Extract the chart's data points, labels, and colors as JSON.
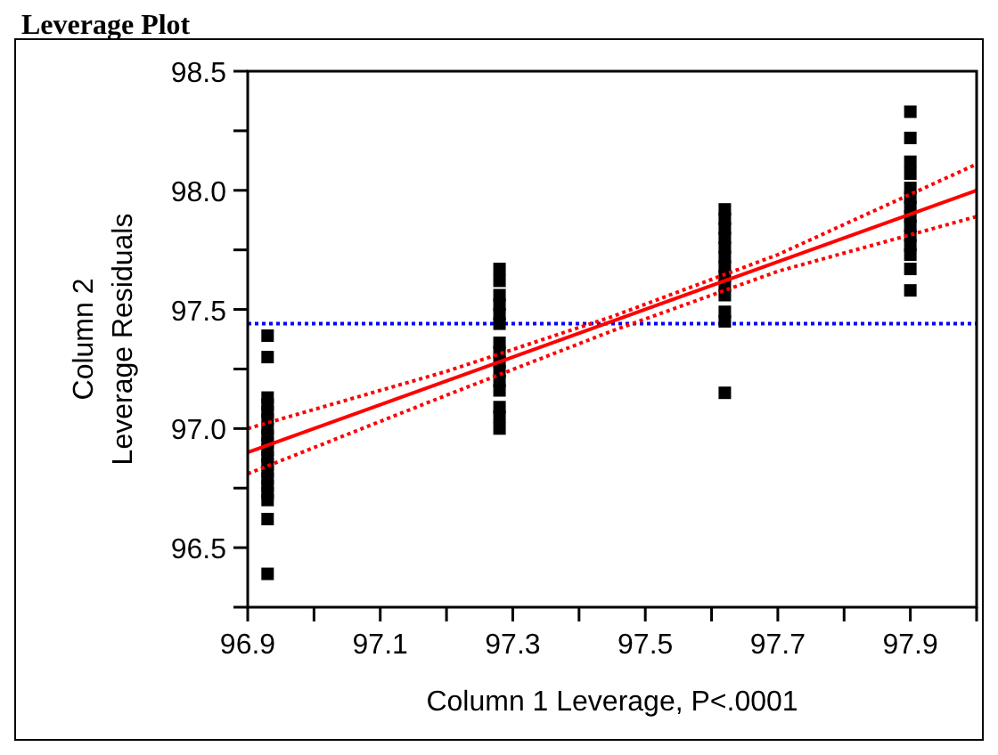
{
  "chart_data": {
    "type": "scatter",
    "title": "Leverage Plot",
    "xlabel": "Column 1 Leverage, P<.0001",
    "ylabel": "Column 2\nLeverage Residuals",
    "xlim": [
      96.9,
      98.0
    ],
    "ylim": [
      96.25,
      98.5
    ],
    "xticks": [
      96.9,
      {
        "value": 97.0,
        "label": null
      },
      97.1,
      {
        "value": 97.2,
        "label": null
      },
      97.3,
      {
        "value": 97.4,
        "label": null
      },
      97.5,
      {
        "value": 97.6,
        "label": null
      },
      97.7,
      {
        "value": 97.8,
        "label": null
      },
      97.9,
      {
        "value": 98.0,
        "label": null
      }
    ],
    "yticks": [
      {
        "value": 96.25,
        "label": null
      },
      96.5,
      {
        "value": 96.75,
        "label": null
      },
      {
        "value": 97.0,
        "label": "97.0"
      },
      {
        "value": 97.25,
        "label": null
      },
      97.5,
      {
        "value": 97.75,
        "label": null
      },
      {
        "value": 98.0,
        "label": "98.0"
      },
      {
        "value": 98.25,
        "label": null
      },
      98.5
    ],
    "grid": false,
    "ref_lines": [
      {
        "axis": "y",
        "value": 97.44,
        "color": "#0000ff",
        "line_style": "dotted"
      }
    ],
    "series": [
      {
        "color": "#000000",
        "marker": "square",
        "x": [
          96.93,
          96.93,
          96.93,
          96.93,
          96.93,
          96.93,
          96.93,
          96.93,
          96.93,
          96.93,
          96.93,
          96.93,
          96.93,
          96.93,
          96.93,
          96.93,
          96.93,
          96.93,
          96.93,
          97.28,
          97.28,
          97.28,
          97.28,
          97.28,
          97.28,
          97.28,
          97.28,
          97.28,
          97.28,
          97.28,
          97.28,
          97.28,
          97.28,
          97.28,
          97.62,
          97.62,
          97.62,
          97.62,
          97.62,
          97.62,
          97.62,
          97.62,
          97.62,
          97.62,
          97.62,
          97.62,
          97.62,
          97.9,
          97.9,
          97.9,
          97.9,
          97.9,
          97.9,
          97.9,
          97.9,
          97.9,
          97.9,
          97.9,
          97.9,
          97.9,
          97.9
        ],
        "values": [
          97.39,
          97.3,
          97.13,
          97.1,
          97.07,
          97.04,
          97.0,
          96.97,
          96.94,
          96.91,
          96.88,
          96.85,
          96.82,
          96.79,
          96.76,
          96.73,
          96.7,
          96.62,
          96.39,
          97.67,
          97.62,
          97.56,
          97.52,
          97.48,
          97.44,
          97.36,
          97.32,
          97.28,
          97.24,
          97.2,
          97.16,
          97.09,
          97.05,
          97.0,
          97.92,
          97.88,
          97.84,
          97.8,
          97.76,
          97.72,
          97.68,
          97.64,
          97.6,
          97.56,
          97.49,
          97.45,
          97.15,
          98.33,
          98.22,
          98.12,
          98.07,
          98.01,
          97.97,
          97.93,
          97.89,
          97.85,
          97.81,
          97.77,
          97.73,
          97.67,
          97.58
        ]
      },
      {
        "type": "line",
        "color": "#ff0000",
        "line_style": "solid",
        "x": [
          96.9,
          98.0
        ],
        "values": [
          96.9,
          98.0
        ]
      },
      {
        "type": "line",
        "color": "#ff0000",
        "line_style": "dotted",
        "x": [
          96.9,
          97.2,
          97.45,
          97.7,
          98.0
        ],
        "values": [
          97.0,
          97.24,
          97.47,
          97.73,
          98.11
        ]
      },
      {
        "type": "line",
        "color": "#ff0000",
        "line_style": "dotted",
        "x": [
          96.9,
          97.2,
          97.45,
          97.7,
          98.0
        ],
        "values": [
          96.81,
          97.14,
          97.41,
          97.66,
          97.89
        ]
      }
    ]
  }
}
